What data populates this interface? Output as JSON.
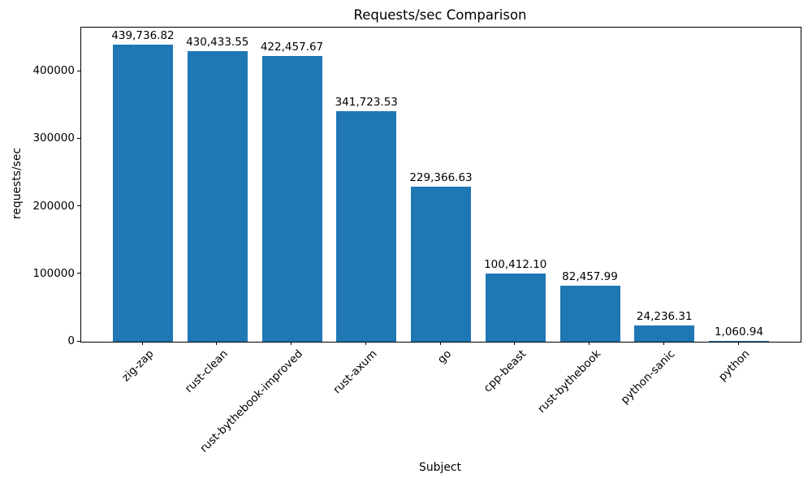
{
  "chart_data": {
    "type": "bar",
    "title": "Requests/sec Comparison",
    "xlabel": "Subject",
    "ylabel": "requests/sec",
    "categories": [
      "zig-zap",
      "rust-clean",
      "rust-bythebook-improved",
      "rust-axum",
      "go",
      "cpp-beast",
      "rust-bythebook",
      "python-sanic",
      "python"
    ],
    "values": [
      439736.82,
      430433.55,
      422457.67,
      341723.53,
      229366.63,
      100412.1,
      82457.99,
      24236.31,
      1060.94
    ],
    "value_labels": [
      "439,736.82",
      "430,433.55",
      "422,457.67",
      "341,723.53",
      "229,366.63",
      "100,412.10",
      "82,457.99",
      "24,236.31",
      "1,060.94"
    ],
    "yticks": [
      0,
      100000,
      200000,
      300000,
      400000
    ],
    "ytick_labels": [
      "0",
      "100000",
      "200000",
      "300000",
      "400000"
    ],
    "ylim": [
      0,
      465000
    ],
    "bar_color": "#1f77b4",
    "grid": false,
    "legend": null,
    "x_tick_rotation_deg": 45
  }
}
